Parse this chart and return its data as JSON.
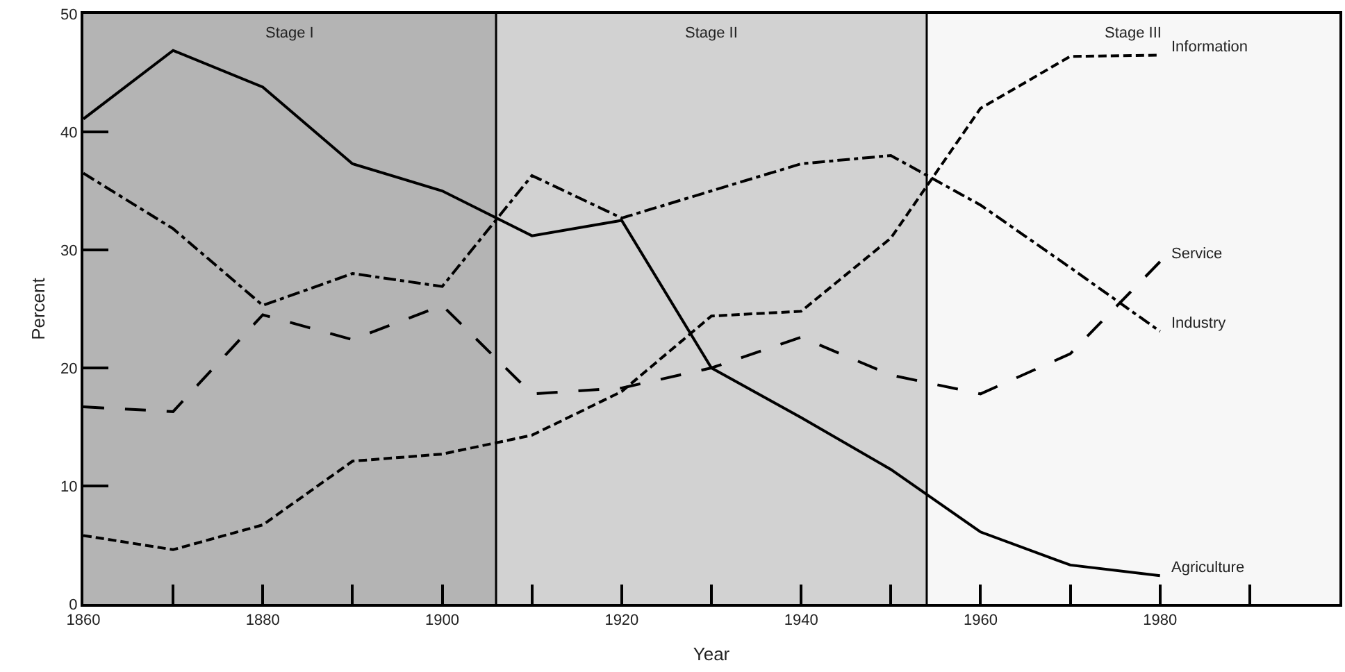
{
  "chart_data": {
    "type": "line",
    "xlabel": "Year",
    "ylabel": "Percent",
    "x": [
      1860,
      1870,
      1880,
      1890,
      1900,
      1910,
      1920,
      1930,
      1940,
      1950,
      1960,
      1970,
      1980
    ],
    "series": [
      {
        "name": "Agriculture",
        "color": "#000000",
        "line_style": "solid",
        "values": [
          41.1,
          46.9,
          43.8,
          37.3,
          35.0,
          31.2,
          32.5,
          20.0,
          15.8,
          11.4,
          6.1,
          3.3,
          2.4
        ]
      },
      {
        "name": "Industry",
        "color": "#000000",
        "line_style": "dashdot",
        "values": [
          36.5,
          31.8,
          25.3,
          28.0,
          26.9,
          36.3,
          32.7,
          35.0,
          37.3,
          38.0,
          33.8,
          28.5,
          23.1
        ]
      },
      {
        "name": "Service",
        "color": "#000000",
        "line_style": "longdash",
        "values": [
          16.7,
          16.3,
          24.5,
          22.4,
          25.3,
          17.8,
          18.3,
          20.0,
          22.6,
          19.4,
          17.8,
          21.2,
          29.0
        ]
      },
      {
        "name": "Information",
        "color": "#000000",
        "line_style": "dashed",
        "values": [
          5.8,
          4.6,
          6.7,
          12.1,
          12.7,
          14.3,
          18.0,
          24.4,
          24.8,
          31.0,
          42.0,
          46.4,
          46.5
        ]
      }
    ],
    "xlim": [
      1860,
      2000
    ],
    "xticks": [
      1860,
      {
        "value": 1870,
        "label": null
      },
      1880,
      {
        "value": 1890,
        "label": null
      },
      1900,
      {
        "value": 1910,
        "label": null
      },
      1920,
      {
        "value": 1930,
        "label": null
      },
      1940,
      {
        "value": 1950,
        "label": null
      },
      1960,
      {
        "value": 1970,
        "label": null
      },
      1980,
      {
        "value": 1990,
        "label": null
      }
    ],
    "ylim": [
      0,
      50
    ],
    "yticks": [
      0,
      10,
      20,
      30,
      40,
      50
    ],
    "bands": [
      {
        "axis": "x",
        "from": 1860,
        "to": 1906,
        "label": "Stage I",
        "color": "#b4b4b4"
      },
      {
        "axis": "x",
        "from": 1906,
        "to": 1954,
        "label": "Stage II",
        "color": "#d2d2d2"
      },
      {
        "axis": "x",
        "from": 1954,
        "to": 2000,
        "label": "Stage III",
        "color": "#f7f7f7"
      }
    ],
    "ref_lines": [
      {
        "axis": "x",
        "value": 1906,
        "color": "#000000"
      },
      {
        "axis": "x",
        "value": 1954,
        "color": "#000000"
      }
    ],
    "grid": false,
    "legend": false,
    "marker": "none"
  }
}
